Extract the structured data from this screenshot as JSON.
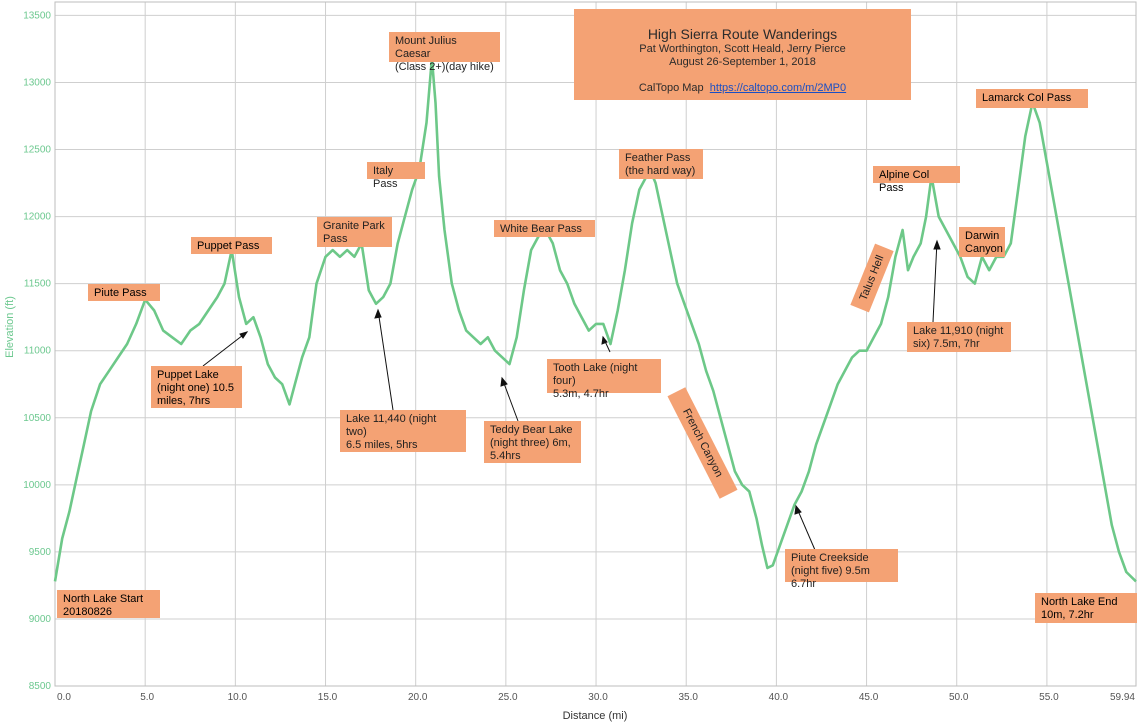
{
  "chart_data": {
    "type": "line",
    "xlabel": "Distance (mi)",
    "ylabel": "Elevation (ft)",
    "xlim": [
      0,
      59.94
    ],
    "ylim": [
      8500,
      13600
    ],
    "x_ticks": [
      {
        "v": 0,
        "label": "0.0"
      },
      {
        "v": 5,
        "label": "5.0"
      },
      {
        "v": 10,
        "label": "10.0"
      },
      {
        "v": 15,
        "label": "15.0"
      },
      {
        "v": 20,
        "label": "20.0"
      },
      {
        "v": 25,
        "label": "25.0"
      },
      {
        "v": 30,
        "label": "30.0"
      },
      {
        "v": 35,
        "label": "35.0"
      },
      {
        "v": 40,
        "label": "40.0"
      },
      {
        "v": 45,
        "label": "45.0"
      },
      {
        "v": 50,
        "label": "50.0"
      },
      {
        "v": 55,
        "label": "55.0"
      },
      {
        "v": 59.94,
        "label": "59.94"
      }
    ],
    "y_ticks": [
      {
        "v": 8500,
        "label": "8500"
      },
      {
        "v": 9000,
        "label": "9000"
      },
      {
        "v": 9500,
        "label": "9500"
      },
      {
        "v": 10000,
        "label": "10000"
      },
      {
        "v": 10500,
        "label": "10500"
      },
      {
        "v": 11000,
        "label": "11000"
      },
      {
        "v": 11500,
        "label": "11500"
      },
      {
        "v": 12000,
        "label": "12000"
      },
      {
        "v": 12500,
        "label": "12500"
      },
      {
        "v": 13000,
        "label": "13000"
      },
      {
        "v": 13500,
        "label": "13500"
      }
    ],
    "grid": true,
    "line_color": "#6dc888",
    "series": [
      {
        "x": [
          0,
          0.4,
          0.8,
          1.2,
          1.6,
          2,
          2.5,
          3,
          3.5,
          4,
          4.5,
          5,
          5.5,
          6,
          6.5,
          7,
          7.5,
          8,
          8.5,
          9,
          9.4,
          9.8,
          10.2,
          10.6,
          11,
          11.4,
          11.8,
          12.2,
          12.6,
          13,
          13.3,
          13.7,
          14.1,
          14.5,
          15,
          15.4,
          15.8,
          16.2,
          16.6,
          17,
          17.4,
          17.8,
          18.2,
          18.6,
          19,
          19.4,
          19.8,
          20.2,
          20.6,
          20.9,
          21.1,
          21.3,
          21.6,
          22,
          22.4,
          22.8,
          23.2,
          23.6,
          24,
          24.4,
          24.8,
          25.2,
          25.6,
          26,
          26.4,
          26.8,
          27.2,
          27.6,
          28,
          28.4,
          28.8,
          29.2,
          29.6,
          30,
          30.4,
          30.8,
          31.2,
          31.6,
          32,
          32.4,
          32.8,
          33,
          33.3,
          33.7,
          34.1,
          34.5,
          34.9,
          35.3,
          35.7,
          36.1,
          36.5,
          36.9,
          37.3,
          37.7,
          38.1,
          38.5,
          38.9,
          39.2,
          39.5,
          39.8,
          40.2,
          40.6,
          41,
          41.4,
          41.8,
          42.2,
          42.6,
          43,
          43.4,
          43.8,
          44.2,
          44.6,
          45,
          45.4,
          45.8,
          46.2,
          46.6,
          47,
          47.3,
          47.6,
          48,
          48.3,
          48.6,
          49,
          49.4,
          49.8,
          50.2,
          50.6,
          51,
          51.4,
          51.8,
          52.2,
          52.6,
          53,
          53.4,
          53.8,
          54.2,
          54.6,
          55,
          55.4,
          55.8,
          56.2,
          56.6,
          57,
          57.4,
          57.8,
          58.2,
          58.6,
          59,
          59.4,
          59.94
        ],
        "y": [
          9280,
          9600,
          9800,
          10050,
          10300,
          10550,
          10750,
          10850,
          10950,
          11050,
          11200,
          11380,
          11300,
          11150,
          11100,
          11050,
          11150,
          11200,
          11300,
          11400,
          11500,
          11750,
          11400,
          11200,
          11250,
          11100,
          10900,
          10800,
          10750,
          10600,
          10750,
          10950,
          11100,
          11500,
          11700,
          11750,
          11700,
          11750,
          11700,
          11800,
          11450,
          11350,
          11400,
          11500,
          11800,
          12000,
          12200,
          12350,
          12700,
          13180,
          12850,
          12300,
          11900,
          11500,
          11300,
          11150,
          11100,
          11050,
          11100,
          11000,
          10950,
          10900,
          11100,
          11450,
          11750,
          11850,
          11900,
          11800,
          11600,
          11500,
          11350,
          11250,
          11150,
          11200,
          11200,
          11050,
          11300,
          11600,
          11950,
          12200,
          12300,
          12350,
          12250,
          12000,
          11750,
          11500,
          11350,
          11200,
          11050,
          10850,
          10700,
          10500,
          10300,
          10100,
          10000,
          9950,
          9750,
          9550,
          9380,
          9400,
          9550,
          9700,
          9850,
          9950,
          10100,
          10300,
          10450,
          10600,
          10750,
          10850,
          10950,
          11000,
          11000,
          11100,
          11200,
          11400,
          11700,
          11900,
          11600,
          11700,
          11800,
          12000,
          12300,
          12000,
          11900,
          11800,
          11700,
          11550,
          11500,
          11700,
          11600,
          11700,
          11700,
          11800,
          12200,
          12600,
          12850,
          12700,
          12400,
          12100,
          11800,
          11500,
          11200,
          10900,
          10600,
          10300,
          10000,
          9700,
          9500,
          9350,
          9280
        ]
      }
    ]
  },
  "title_box": {
    "title": "High Sierra Route Wanderings",
    "authors": "Pat Worthington, Scott Heald, Jerry Pierce",
    "dates": "August 26-September 1, 2018",
    "map_label": "CalTopo Map",
    "map_link": "https://caltopo.com/m/2MP0"
  },
  "annotations": [
    {
      "id": "north-lake-start",
      "text": "North Lake Start\n20180826"
    },
    {
      "id": "piute-pass",
      "text": "Piute Pass"
    },
    {
      "id": "puppet-pass",
      "text": "Puppet  Pass"
    },
    {
      "id": "puppet-lake",
      "text": "Puppet  Lake\n(night one) 10.5\nmiles, 7hrs"
    },
    {
      "id": "granite-park-pass",
      "text": "Granite Park\nPass"
    },
    {
      "id": "italy-pass",
      "text": "Italy Pass"
    },
    {
      "id": "mount-julius-caesar",
      "text": "Mount Julius Caesar\n(Class 2+)(day hike)"
    },
    {
      "id": "lake-11440",
      "text": "Lake 11,440 (night two)\n6.5 miles, 5hrs"
    },
    {
      "id": "white-bear-pass",
      "text": "White Bear Pass"
    },
    {
      "id": "teddy-bear-lake",
      "text": "Teddy Bear Lake\n(night three) 6m,\n5.4hrs"
    },
    {
      "id": "tooth-lake",
      "text": "Tooth Lake (night four)\n5.3m, 4.7hr"
    },
    {
      "id": "feather-pass",
      "text": "Feather Pass\n(the hard way)"
    },
    {
      "id": "french-canyon",
      "text": "French Canyon"
    },
    {
      "id": "piute-creekside",
      "text": "Piute Creekside\n(night five) 9.5m 6.7hr"
    },
    {
      "id": "talus-hell",
      "text": "Talus Hell"
    },
    {
      "id": "alpine-col-pass",
      "text": "Alpine Col Pass"
    },
    {
      "id": "lake-11910",
      "text": "Lake 11,910 (night\nsix) 7.5m, 7hr"
    },
    {
      "id": "darwin-canyon",
      "text": "Darwin\nCanyon"
    },
    {
      "id": "lamarck-col-pass",
      "text": "Lamarck Col Pass"
    },
    {
      "id": "north-lake-end",
      "text": "North Lake End\n10m, 7.2hr"
    }
  ]
}
